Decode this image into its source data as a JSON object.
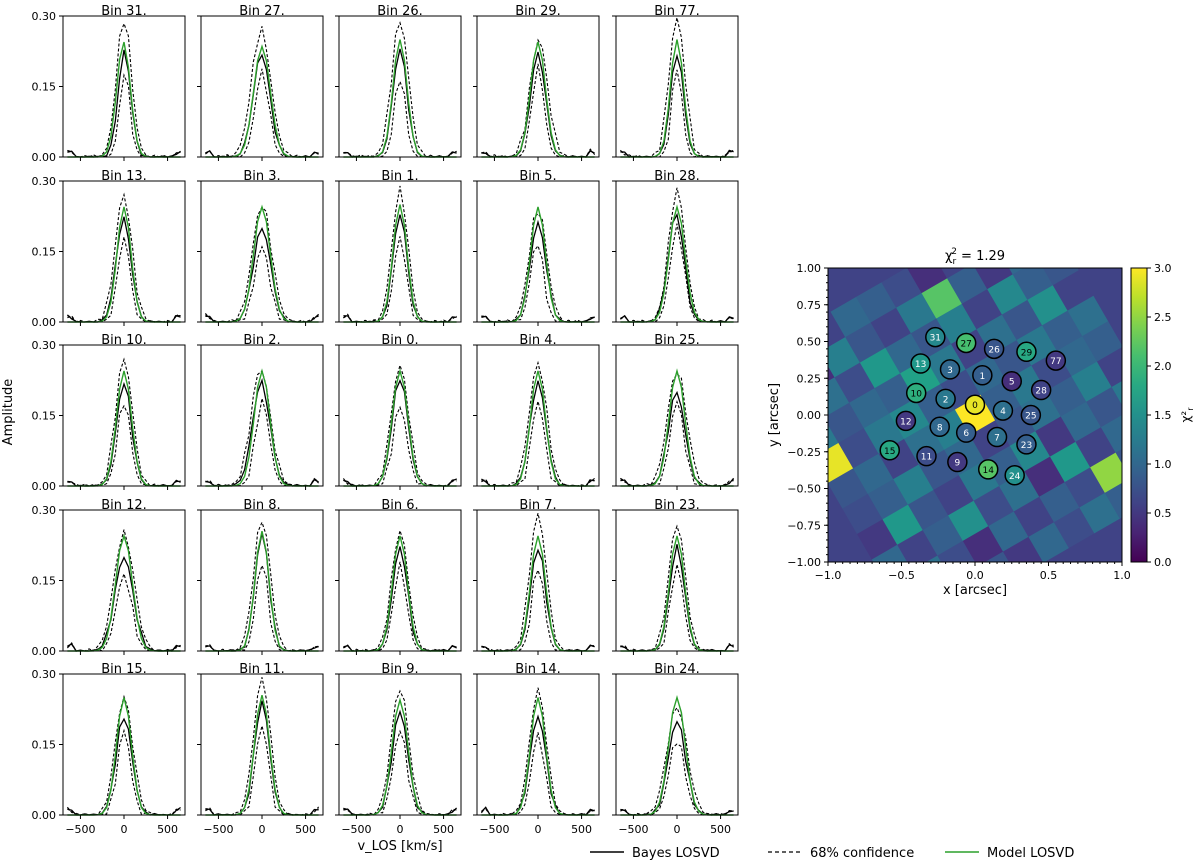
{
  "chart_data": [
    {
      "type": "line",
      "name": "losvd-grid",
      "ylabel": "Amplitude",
      "xlabel": "v_LOS [km/s]",
      "xlim": [
        -700,
        700
      ],
      "ylim": [
        0,
        0.3
      ],
      "xticks": [
        "−500",
        "0",
        "500"
      ],
      "xtick_values": [
        -500,
        0,
        500
      ],
      "yticks": [
        "0.00",
        "0.15",
        "0.30"
      ],
      "ytick_values": [
        0,
        0.15,
        0.3
      ],
      "v": [
        -650,
        -600,
        -550,
        -500,
        -450,
        -400,
        -350,
        -300,
        -250,
        -200,
        -150,
        -100,
        -50,
        0,
        50,
        100,
        150,
        200,
        250,
        300,
        350,
        400,
        450,
        500,
        550,
        600,
        650
      ],
      "colors": {
        "bayes": "#000000",
        "confidence": "#000000",
        "model": "#2ca02c"
      },
      "legend": [
        "Bayes LOSVD",
        "68% confidence",
        "Model LOSVD"
      ],
      "legend_placement": "bottom-right",
      "panels": [
        {
          "title": "Bin 31.",
          "model": {
            "peak": 0.245,
            "center": -5,
            "width": 78
          },
          "bayes": {
            "peak": 0.225,
            "center": 5,
            "width": 72
          },
          "upper": {
            "peak": 0.295,
            "center": 0,
            "width": 85
          },
          "lower": {
            "peak": 0.18,
            "center": 10,
            "width": 60
          }
        },
        {
          "title": "Bin 27.",
          "model": {
            "peak": 0.235,
            "center": 0,
            "width": 95
          },
          "bayes": {
            "peak": 0.22,
            "center": -5,
            "width": 95
          },
          "upper": {
            "peak": 0.27,
            "center": -10,
            "width": 110
          },
          "lower": {
            "peak": 0.18,
            "center": 0,
            "width": 80
          }
        },
        {
          "title": "Bin 26.",
          "model": {
            "peak": 0.25,
            "center": 0,
            "width": 80
          },
          "bayes": {
            "peak": 0.23,
            "center": 0,
            "width": 80
          },
          "upper": {
            "peak": 0.29,
            "center": 0,
            "width": 95
          },
          "lower": {
            "peak": 0.17,
            "center": 0,
            "width": 65
          }
        },
        {
          "title": "Bin 29.",
          "model": {
            "peak": 0.245,
            "center": 0,
            "width": 85
          },
          "bayes": {
            "peak": 0.22,
            "center": 0,
            "width": 85
          },
          "upper": {
            "peak": 0.25,
            "center": 10,
            "width": 100
          },
          "lower": {
            "peak": 0.19,
            "center": 0,
            "width": 70
          }
        },
        {
          "title": "Bin 77.",
          "model": {
            "peak": 0.25,
            "center": 0,
            "width": 75
          },
          "bayes": {
            "peak": 0.22,
            "center": 0,
            "width": 75
          },
          "upper": {
            "peak": 0.295,
            "center": 0,
            "width": 90
          },
          "lower": {
            "peak": 0.19,
            "center": 0,
            "width": 60
          }
        },
        {
          "title": "Bin 13.",
          "model": {
            "peak": 0.245,
            "center": 0,
            "width": 80
          },
          "bayes": {
            "peak": 0.22,
            "center": -5,
            "width": 85
          },
          "upper": {
            "peak": 0.27,
            "center": -5,
            "width": 95
          },
          "lower": {
            "peak": 0.18,
            "center": 0,
            "width": 70
          }
        },
        {
          "title": "Bin 3.",
          "model": {
            "peak": 0.245,
            "center": 0,
            "width": 95
          },
          "bayes": {
            "peak": 0.2,
            "center": 0,
            "width": 100
          },
          "upper": {
            "peak": 0.25,
            "center": 0,
            "width": 110
          },
          "lower": {
            "peak": 0.16,
            "center": 0,
            "width": 85
          }
        },
        {
          "title": "Bin 1.",
          "model": {
            "peak": 0.25,
            "center": 0,
            "width": 80
          },
          "bayes": {
            "peak": 0.23,
            "center": 0,
            "width": 80
          },
          "upper": {
            "peak": 0.28,
            "center": 0,
            "width": 90
          },
          "lower": {
            "peak": 0.18,
            "center": 0,
            "width": 70
          }
        },
        {
          "title": "Bin 5.",
          "model": {
            "peak": 0.245,
            "center": 0,
            "width": 85
          },
          "bayes": {
            "peak": 0.21,
            "center": 0,
            "width": 90
          },
          "upper": {
            "peak": 0.24,
            "center": 0,
            "width": 100
          },
          "lower": {
            "peak": 0.17,
            "center": -10,
            "width": 75
          }
        },
        {
          "title": "Bin 28.",
          "model": {
            "peak": 0.245,
            "center": 0,
            "width": 90
          },
          "bayes": {
            "peak": 0.23,
            "center": -10,
            "width": 90
          },
          "upper": {
            "peak": 0.28,
            "center": 0,
            "width": 95
          },
          "lower": {
            "peak": 0.2,
            "center": 0,
            "width": 80
          }
        },
        {
          "title": "Bin 10.",
          "model": {
            "peak": 0.245,
            "center": 0,
            "width": 85
          },
          "bayes": {
            "peak": 0.22,
            "center": 0,
            "width": 85
          },
          "upper": {
            "peak": 0.27,
            "center": 0,
            "width": 95
          },
          "lower": {
            "peak": 0.18,
            "center": 0,
            "width": 75
          }
        },
        {
          "title": "Bin 2.",
          "model": {
            "peak": 0.245,
            "center": 0,
            "width": 90
          },
          "bayes": {
            "peak": 0.22,
            "center": -10,
            "width": 100
          },
          "upper": {
            "peak": 0.25,
            "center": -15,
            "width": 110
          },
          "lower": {
            "peak": 0.18,
            "center": 5,
            "width": 80
          }
        },
        {
          "title": "Bin 0.",
          "model": {
            "peak": 0.245,
            "center": 0,
            "width": 90
          },
          "bayes": {
            "peak": 0.23,
            "center": 0,
            "width": 90
          },
          "upper": {
            "peak": 0.255,
            "center": 0,
            "width": 100
          },
          "lower": {
            "peak": 0.17,
            "center": 0,
            "width": 80
          }
        },
        {
          "title": "Bin 4.",
          "model": {
            "peak": 0.245,
            "center": 0,
            "width": 85
          },
          "bayes": {
            "peak": 0.22,
            "center": 0,
            "width": 90
          },
          "upper": {
            "peak": 0.26,
            "center": 0,
            "width": 100
          },
          "lower": {
            "peak": 0.18,
            "center": 0,
            "width": 75
          }
        },
        {
          "title": "Bin 25.",
          "model": {
            "peak": 0.245,
            "center": 0,
            "width": 90
          },
          "bayes": {
            "peak": 0.2,
            "center": -5,
            "width": 95
          },
          "upper": {
            "peak": 0.245,
            "center": 0,
            "width": 110
          },
          "lower": {
            "peak": 0.18,
            "center": 0,
            "width": 80
          }
        },
        {
          "title": "Bin 12.",
          "model": {
            "peak": 0.245,
            "center": 0,
            "width": 95
          },
          "bayes": {
            "peak": 0.2,
            "center": 0,
            "width": 105
          },
          "upper": {
            "peak": 0.25,
            "center": 0,
            "width": 115
          },
          "lower": {
            "peak": 0.16,
            "center": 0,
            "width": 90
          }
        },
        {
          "title": "Bin 8.",
          "model": {
            "peak": 0.255,
            "center": 0,
            "width": 80
          },
          "bayes": {
            "peak": 0.25,
            "center": 0,
            "width": 80
          },
          "upper": {
            "peak": 0.28,
            "center": 0,
            "width": 95
          },
          "lower": {
            "peak": 0.19,
            "center": 0,
            "width": 70
          }
        },
        {
          "title": "Bin 6.",
          "model": {
            "peak": 0.245,
            "center": 0,
            "width": 85
          },
          "bayes": {
            "peak": 0.22,
            "center": 0,
            "width": 85
          },
          "upper": {
            "peak": 0.255,
            "center": 0,
            "width": 95
          },
          "lower": {
            "peak": 0.18,
            "center": 0,
            "width": 75
          }
        },
        {
          "title": "Bin 7.",
          "model": {
            "peak": 0.245,
            "center": 0,
            "width": 85
          },
          "bayes": {
            "peak": 0.22,
            "center": 0,
            "width": 85
          },
          "upper": {
            "peak": 0.29,
            "center": 0,
            "width": 95
          },
          "lower": {
            "peak": 0.18,
            "center": 0,
            "width": 70
          }
        },
        {
          "title": "Bin 23.",
          "model": {
            "peak": 0.245,
            "center": 0,
            "width": 85
          },
          "bayes": {
            "peak": 0.22,
            "center": 0,
            "width": 85
          },
          "upper": {
            "peak": 0.27,
            "center": 0,
            "width": 95
          },
          "lower": {
            "peak": 0.18,
            "center": 0,
            "width": 75
          }
        },
        {
          "title": "Bin 15.",
          "model": {
            "peak": 0.25,
            "center": 0,
            "width": 85
          },
          "bayes": {
            "peak": 0.21,
            "center": 0,
            "width": 90
          },
          "upper": {
            "peak": 0.25,
            "center": 0,
            "width": 100
          },
          "lower": {
            "peak": 0.18,
            "center": 0,
            "width": 75
          }
        },
        {
          "title": "Bin 11.",
          "model": {
            "peak": 0.255,
            "center": 0,
            "width": 85
          },
          "bayes": {
            "peak": 0.24,
            "center": 0,
            "width": 85
          },
          "upper": {
            "peak": 0.29,
            "center": 0,
            "width": 95
          },
          "lower": {
            "peak": 0.19,
            "center": 0,
            "width": 75
          }
        },
        {
          "title": "Bin 9.",
          "model": {
            "peak": 0.245,
            "center": 0,
            "width": 90
          },
          "bayes": {
            "peak": 0.22,
            "center": 0,
            "width": 90
          },
          "upper": {
            "peak": 0.27,
            "center": 0,
            "width": 100
          },
          "lower": {
            "peak": 0.18,
            "center": 0,
            "width": 80
          }
        },
        {
          "title": "Bin 14.",
          "model": {
            "peak": 0.25,
            "center": 0,
            "width": 85
          },
          "bayes": {
            "peak": 0.21,
            "center": 0,
            "width": 90
          },
          "upper": {
            "peak": 0.265,
            "center": 0,
            "width": 95
          },
          "lower": {
            "peak": 0.17,
            "center": 0,
            "width": 75
          }
        },
        {
          "title": "Bin 24.",
          "model": {
            "peak": 0.25,
            "center": 0,
            "width": 95
          },
          "bayes": {
            "peak": 0.2,
            "center": 0,
            "width": 100
          },
          "upper": {
            "peak": 0.23,
            "center": 0,
            "width": 115
          },
          "lower": {
            "peak": 0.16,
            "center": 0,
            "width": 90
          }
        }
      ]
    },
    {
      "type": "heatmap",
      "name": "chi2-map",
      "title_prefix": "χ",
      "title_sub": "r",
      "title_sup": "2",
      "title_suffix": " = 1.29",
      "xlabel": "x [arcsec]",
      "ylabel": "y [arcsec]",
      "colorbar_label": "χ²",
      "colorbar_label_sub": "r",
      "xlim": [
        -1.0,
        1.0
      ],
      "ylim": [
        -1.0,
        1.0
      ],
      "xticks": [
        "−1.0",
        "−0.5",
        "0.0",
        "0.5",
        "1.0"
      ],
      "yticks": [
        "1.00",
        "0.75",
        "0.50",
        "0.25",
        "0.00",
        "−0.25",
        "−0.50",
        "−0.75",
        "−1.00"
      ],
      "colorbar_range": [
        0.0,
        3.0
      ],
      "colorbar_ticks": [
        "0.0",
        "0.5",
        "1.0",
        "1.5",
        "2.0",
        "2.5",
        "3.0"
      ],
      "colormap": "viridis",
      "grid_rotation_deg": 30,
      "grid_step": 0.2,
      "cells": [
        [
          0.5,
          0.8,
          0.6,
          1.0,
          0.9,
          0.7,
          0.4,
          0.6,
          1.1,
          0.5,
          0.9
        ],
        [
          0.9,
          0.4,
          1.3,
          0.8,
          0.6,
          1.2,
          2.2,
          0.9,
          0.5,
          1.0,
          0.7
        ],
        [
          0.6,
          1.1,
          0.7,
          1.6,
          1.0,
          0.8,
          1.3,
          0.6,
          1.4,
          0.9,
          0.8
        ],
        [
          1.2,
          0.8,
          1.0,
          0.9,
          1.7,
          1.2,
          0.6,
          1.1,
          0.8,
          1.5,
          0.6
        ],
        [
          2.9,
          0.7,
          1.2,
          1.4,
          0.9,
          0.7,
          1.0,
          0.8,
          1.2,
          0.9,
          1.1
        ],
        [
          0.8,
          1.0,
          0.6,
          1.1,
          1.3,
          3.0,
          0.9,
          1.2,
          0.7,
          1.0,
          0.9
        ],
        [
          0.7,
          0.9,
          1.3,
          0.8,
          1.0,
          0.6,
          0.8,
          1.1,
          0.9,
          1.3,
          0.6
        ],
        [
          0.5,
          1.6,
          0.8,
          0.6,
          1.2,
          0.9,
          1.4,
          0.5,
          1.0,
          0.8,
          1.2
        ],
        [
          1.0,
          0.6,
          0.9,
          1.5,
          0.7,
          1.1,
          0.4,
          1.6,
          0.6,
          1.0,
          0.7
        ],
        [
          0.8,
          1.1,
          0.7,
          0.4,
          1.0,
          0.6,
          0.9,
          0.7,
          2.5,
          0.8,
          0.9
        ],
        [
          0.6,
          0.9,
          1.2,
          0.8,
          0.5,
          1.0,
          0.7,
          1.1,
          0.9,
          0.6,
          1.0
        ]
      ],
      "bins": [
        {
          "id": "31",
          "x": -0.27,
          "y": 0.53,
          "value": 1.4
        },
        {
          "id": "27",
          "x": -0.06,
          "y": 0.49,
          "value": 2.1
        },
        {
          "id": "26",
          "x": 0.13,
          "y": 0.45,
          "value": 0.8
        },
        {
          "id": "29",
          "x": 0.35,
          "y": 0.43,
          "value": 1.8
        },
        {
          "id": "77",
          "x": 0.55,
          "y": 0.37,
          "value": 0.5
        },
        {
          "id": "13",
          "x": -0.37,
          "y": 0.35,
          "value": 1.6
        },
        {
          "id": "3",
          "x": -0.17,
          "y": 0.31,
          "value": 1.0
        },
        {
          "id": "1",
          "x": 0.05,
          "y": 0.27,
          "value": 0.9
        },
        {
          "id": "5",
          "x": 0.25,
          "y": 0.23,
          "value": 0.4
        },
        {
          "id": "28",
          "x": 0.45,
          "y": 0.17,
          "value": 0.6
        },
        {
          "id": "10",
          "x": -0.4,
          "y": 0.15,
          "value": 1.9
        },
        {
          "id": "2",
          "x": -0.2,
          "y": 0.11,
          "value": 1.2
        },
        {
          "id": "0",
          "x": 0.0,
          "y": 0.07,
          "value": 2.9
        },
        {
          "id": "4",
          "x": 0.19,
          "y": 0.03,
          "value": 1.1
        },
        {
          "id": "25",
          "x": 0.38,
          "y": 0.0,
          "value": 0.8
        },
        {
          "id": "12",
          "x": -0.47,
          "y": -0.04,
          "value": 0.5
        },
        {
          "id": "8",
          "x": -0.24,
          "y": -0.08,
          "value": 1.0
        },
        {
          "id": "6",
          "x": -0.06,
          "y": -0.12,
          "value": 0.9
        },
        {
          "id": "7",
          "x": 0.15,
          "y": -0.15,
          "value": 1.1
        },
        {
          "id": "23",
          "x": 0.35,
          "y": -0.2,
          "value": 0.9
        },
        {
          "id": "15",
          "x": -0.58,
          "y": -0.24,
          "value": 1.8
        },
        {
          "id": "11",
          "x": -0.33,
          "y": -0.28,
          "value": 0.7
        },
        {
          "id": "9",
          "x": -0.12,
          "y": -0.32,
          "value": 0.5
        },
        {
          "id": "14",
          "x": 0.09,
          "y": -0.37,
          "value": 2.2
        },
        {
          "id": "24",
          "x": 0.27,
          "y": -0.41,
          "value": 1.5
        }
      ]
    }
  ]
}
